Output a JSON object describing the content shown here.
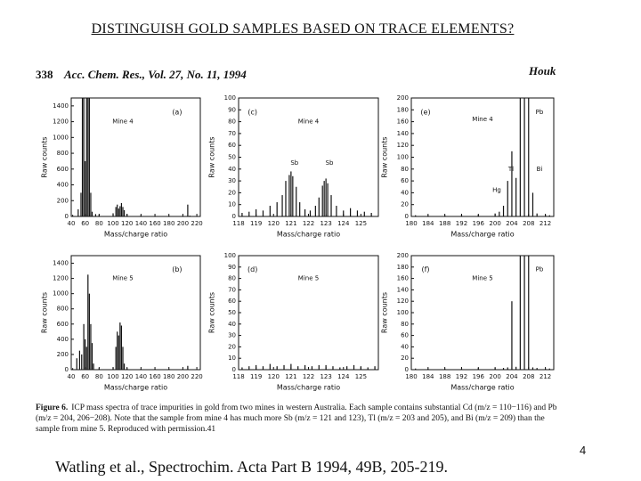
{
  "title": "DISTINGUISH GOLD SAMPLES BASED ON TRACE ELEMENTS?",
  "header": {
    "page": "338",
    "journal": "Acc. Chem. Res., Vol. 27, No. 11, 1994",
    "author": "Houk"
  },
  "chart_data": [
    {
      "type": "stem",
      "panel": "(a)",
      "annotations": [
        "Mine 4"
      ],
      "x_label": "Mass/charge ratio",
      "y_label": "Raw counts",
      "color": "#111",
      "xlim": [
        40,
        225
      ],
      "xticks": [
        40,
        60,
        80,
        100,
        120,
        140,
        160,
        180,
        200,
        220
      ],
      "ylim": [
        0,
        1500
      ],
      "yticks": [
        0,
        200,
        400,
        600,
        800,
        1000,
        1200,
        1400
      ],
      "x": [
        42,
        50,
        54,
        56,
        58,
        60,
        62,
        64,
        66,
        68,
        70,
        75,
        80,
        100,
        104,
        106,
        108,
        110,
        112,
        114,
        116,
        120,
        140,
        160,
        180,
        200,
        207,
        210,
        220
      ],
      "values": [
        20,
        90,
        300,
        1500,
        1500,
        700,
        1500,
        1500,
        1500,
        300,
        60,
        30,
        25,
        40,
        120,
        150,
        100,
        130,
        170,
        120,
        80,
        30,
        15,
        10,
        10,
        10,
        150,
        10,
        5
      ]
    },
    {
      "type": "stem",
      "panel": "(b)",
      "annotations": [
        "Mine 5"
      ],
      "x_label": "Mass/charge ratio",
      "y_label": "Raw counts",
      "color": "#111",
      "xlim": [
        40,
        225
      ],
      "xticks": [
        40,
        60,
        80,
        100,
        120,
        140,
        160,
        180,
        200,
        220
      ],
      "ylim": [
        0,
        1500
      ],
      "yticks": [
        0,
        200,
        400,
        600,
        800,
        1000,
        1200,
        1400
      ],
      "x": [
        42,
        48,
        52,
        55,
        58,
        60,
        62,
        64,
        66,
        68,
        70,
        72,
        80,
        100,
        104,
        106,
        108,
        110,
        112,
        114,
        116,
        120,
        140,
        160,
        180,
        200,
        207,
        220
      ],
      "values": [
        20,
        150,
        250,
        200,
        600,
        400,
        300,
        1250,
        1000,
        600,
        350,
        80,
        20,
        30,
        300,
        500,
        450,
        620,
        580,
        300,
        80,
        20,
        10,
        10,
        10,
        10,
        50,
        5
      ]
    },
    {
      "type": "stem",
      "panel": "(c)",
      "annotations": [
        "Mine 4",
        "Sb",
        "Sb"
      ],
      "x_label": "Mass/charge ratio",
      "y_label": "Raw counts",
      "color": "#111",
      "xlim": [
        118,
        126
      ],
      "xticks": [
        118,
        119,
        120,
        121,
        122,
        123,
        124,
        125
      ],
      "ylim": [
        0,
        100
      ],
      "yticks": [
        0,
        10,
        20,
        30,
        40,
        50,
        60,
        70,
        80,
        90,
        100
      ],
      "x": [
        118.2,
        118.6,
        119,
        119.4,
        119.8,
        120.2,
        120.5,
        120.7,
        120.9,
        121,
        121.1,
        121.3,
        121.5,
        121.8,
        122.1,
        122.4,
        122.6,
        122.8,
        122.9,
        123,
        123.1,
        123.3,
        123.6,
        124,
        124.4,
        124.8,
        125.2,
        125.6
      ],
      "values": [
        3,
        4,
        6,
        5,
        9,
        12,
        18,
        30,
        35,
        38,
        34,
        25,
        12,
        6,
        5,
        9,
        16,
        26,
        30,
        32,
        28,
        18,
        9,
        5,
        7,
        5,
        4,
        3
      ]
    },
    {
      "type": "stem",
      "panel": "(d)",
      "annotations": [
        "Mine 5"
      ],
      "x_label": "Mass/charge ratio",
      "y_label": "Raw counts",
      "color": "#111",
      "xlim": [
        118,
        126
      ],
      "xticks": [
        118,
        119,
        120,
        121,
        122,
        123,
        124,
        125
      ],
      "ylim": [
        0,
        100
      ],
      "yticks": [
        0,
        10,
        20,
        30,
        40,
        50,
        60,
        70,
        80,
        90,
        100
      ],
      "x": [
        118.2,
        118.6,
        119,
        119.4,
        119.8,
        120.2,
        120.6,
        121,
        121.4,
        121.8,
        122.2,
        122.6,
        123,
        123.4,
        123.8,
        124.2,
        124.6,
        125,
        125.4,
        125.8
      ],
      "values": [
        2,
        3,
        4,
        3,
        5,
        3,
        4,
        5,
        3,
        4,
        3,
        4,
        4,
        3,
        2,
        3,
        4,
        3,
        2,
        3
      ]
    },
    {
      "type": "stem",
      "panel": "(e)",
      "annotations": [
        "Mine 4",
        "Pb",
        "Tl",
        "Bi",
        "Hg"
      ],
      "x_label": "Mass/charge ratio",
      "y_label": "Raw counts",
      "color": "#111",
      "xlim": [
        180,
        214
      ],
      "xticks": [
        180,
        184,
        188,
        192,
        196,
        200,
        204,
        208,
        212
      ],
      "ylim": [
        0,
        200
      ],
      "yticks": [
        0,
        20,
        40,
        60,
        80,
        100,
        120,
        140,
        160,
        180,
        200
      ],
      "x": [
        181,
        184,
        188,
        192,
        196,
        200,
        201,
        202,
        203,
        204,
        205,
        206,
        207,
        208,
        209,
        210,
        212,
        213
      ],
      "values": [
        2,
        2,
        2,
        3,
        3,
        5,
        8,
        18,
        60,
        110,
        65,
        200,
        200,
        200,
        40,
        5,
        3,
        2
      ]
    },
    {
      "type": "stem",
      "panel": "(f)",
      "annotations": [
        "Mine 5",
        "Pb"
      ],
      "x_label": "Mass/charge ratio",
      "y_label": "Raw counts",
      "color": "#111",
      "xlim": [
        180,
        214
      ],
      "xticks": [
        180,
        184,
        188,
        192,
        196,
        200,
        204,
        208,
        212
      ],
      "ylim": [
        0,
        200
      ],
      "yticks": [
        0,
        20,
        40,
        60,
        80,
        100,
        120,
        140,
        160,
        180,
        200
      ],
      "x": [
        181,
        184,
        188,
        192,
        196,
        200,
        202,
        203,
        204,
        205,
        206,
        207,
        208,
        209,
        210,
        212,
        213
      ],
      "values": [
        2,
        2,
        2,
        2,
        3,
        3,
        3,
        4,
        120,
        5,
        200,
        200,
        200,
        4,
        3,
        2,
        2
      ]
    }
  ],
  "caption": {
    "label": "Figure 6.",
    "text": "ICP mass spectra of trace impurities in gold from two mines in western Australia. Each sample contains substantial Cd (m/z = 110−116) and Pb (m/z = 204, 206−208). Note that the sample from mine 4 has much more Sb (m/z = 121 and 123), Tl (m/z = 203 and 205), and Bi (m/z = 209) than the sample from mine 5. Reproduced with permission.41"
  },
  "citation": "Watling et al., Spectrochim. Acta Part B 1994, 49B, 205-219.",
  "page_number": "4"
}
